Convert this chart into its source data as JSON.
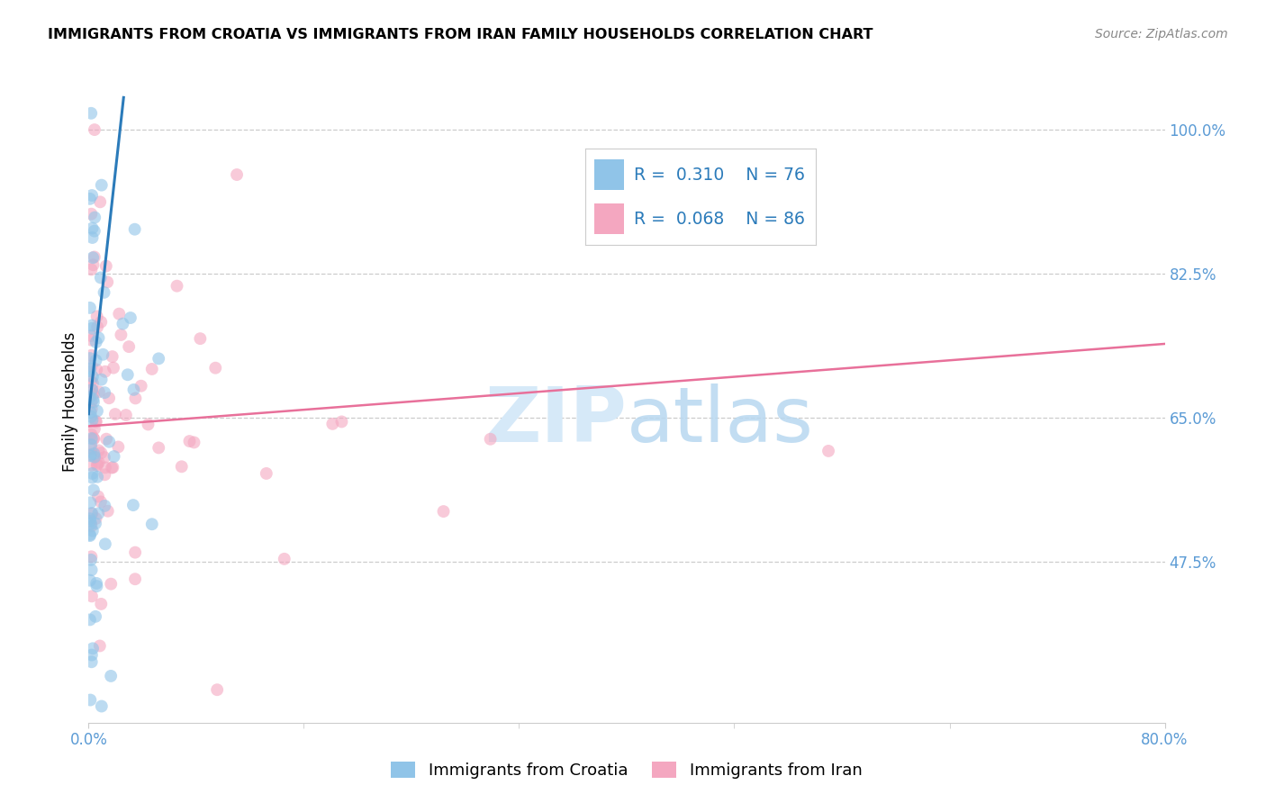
{
  "title": "IMMIGRANTS FROM CROATIA VS IMMIGRANTS FROM IRAN FAMILY HOUSEHOLDS CORRELATION CHART",
  "source": "Source: ZipAtlas.com",
  "ylabel": "Family Households",
  "ytick_labels": [
    "100.0%",
    "82.5%",
    "65.0%",
    "47.5%"
  ],
  "ytick_values": [
    1.0,
    0.825,
    0.65,
    0.475
  ],
  "xlim": [
    0.0,
    0.8
  ],
  "ylim": [
    0.28,
    1.06
  ],
  "croatia_color": "#90c4e8",
  "iran_color": "#f4a7c0",
  "croatia_line_color": "#2b7bba",
  "iran_line_color": "#e8709a",
  "croatia_R": 0.31,
  "croatia_N": 76,
  "iran_R": 0.068,
  "iran_N": 86,
  "legend_text_color": "#2b7bba",
  "watermark": "ZIPatlas",
  "watermark_color": "#d6e9f8",
  "background_color": "#ffffff",
  "grid_color": "#cccccc",
  "tick_label_color": "#5b9bd5",
  "title_fontsize": 11.5,
  "axis_fontsize": 12,
  "marker_size": 100,
  "marker_alpha": 0.6
}
